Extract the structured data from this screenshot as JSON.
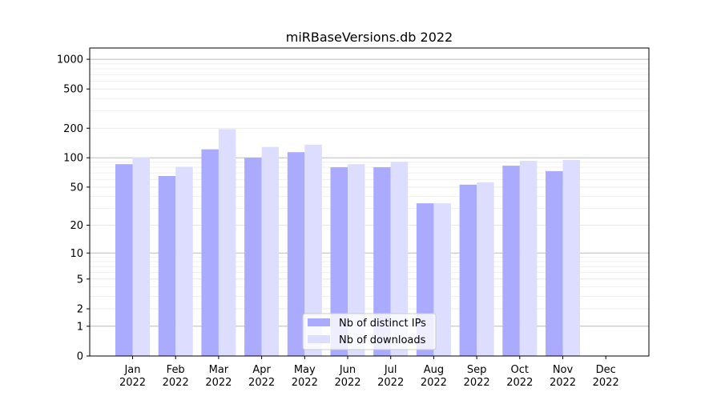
{
  "chart_data": {
    "type": "bar",
    "title": "miRBaseVersions.db 2022",
    "xlabel": "",
    "ylabel": "",
    "yscale": "log(1+y)",
    "ylim": [
      0,
      1300
    ],
    "grid": true,
    "legend_position": "lower-center",
    "categories": [
      {
        "month": "Jan",
        "year": "2022"
      },
      {
        "month": "Feb",
        "year": "2022"
      },
      {
        "month": "Mar",
        "year": "2022"
      },
      {
        "month": "Apr",
        "year": "2022"
      },
      {
        "month": "May",
        "year": "2022"
      },
      {
        "month": "Jun",
        "year": "2022"
      },
      {
        "month": "Jul",
        "year": "2022"
      },
      {
        "month": "Aug",
        "year": "2022"
      },
      {
        "month": "Sep",
        "year": "2022"
      },
      {
        "month": "Oct",
        "year": "2022"
      },
      {
        "month": "Nov",
        "year": "2022"
      },
      {
        "month": "Dec",
        "year": "2022"
      }
    ],
    "yticks": [
      "0",
      "1",
      "2",
      "5",
      "10",
      "20",
      "50",
      "100",
      "200",
      "500",
      "1000"
    ],
    "series": [
      {
        "name": "Nb of distinct IPs",
        "color": "#aaaaff",
        "values": [
          86,
          65,
          122,
          100,
          114,
          80,
          80,
          34,
          53,
          83,
          73,
          0
        ]
      },
      {
        "name": "Nb of downloads",
        "color": "#ddddff",
        "values": [
          101,
          81,
          196,
          129,
          136,
          86,
          91,
          34,
          56,
          93,
          95,
          0
        ]
      }
    ]
  }
}
